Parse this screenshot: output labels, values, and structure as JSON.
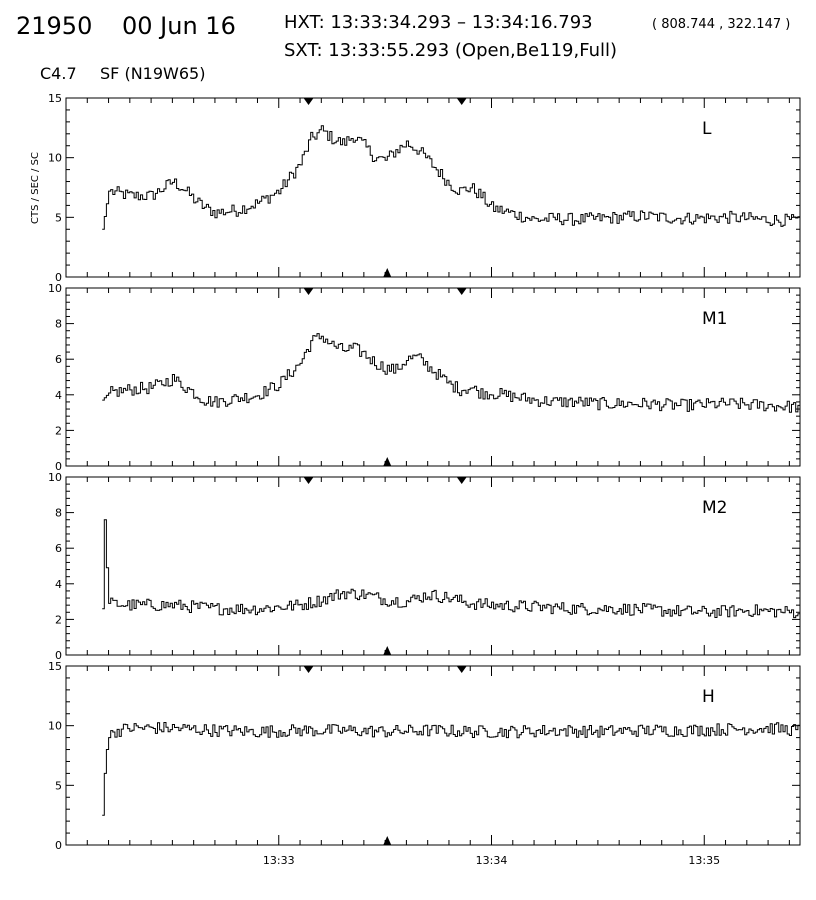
{
  "header": {
    "event_number": "21950",
    "date": "00 Jun 16",
    "hxt_label": "HXT: 13:33:34.293 – 13:34:16.793",
    "hxt_coords": "( 808.744 , 322.147 )",
    "sxt_label": "SXT: 13:33:55.293 (Open,Be119,Full)",
    "goes_class": "C4.7",
    "flare_info": "SF (N19W65)"
  },
  "colors": {
    "line": "#000000",
    "background": "#ffffff"
  },
  "chart_data": {
    "type": "line",
    "ylabel": "CTS / SEC / SC",
    "x_unit": "minutes after 13:32",
    "xlim": [
      0.0,
      3.45
    ],
    "x_tick_labels": [
      {
        "x": 1.0,
        "label": "13:33"
      },
      {
        "x": 2.0,
        "label": "13:34"
      },
      {
        "x": 3.0,
        "label": "13:35"
      }
    ],
    "hxt_markers_x": [
      1.14,
      1.86
    ],
    "sxt_marker_x": 1.51,
    "panels": [
      {
        "name": "L",
        "ylim": [
          0,
          15
        ],
        "yticks": [
          0,
          5,
          10,
          15
        ],
        "x": [
          0.17,
          0.2,
          0.3,
          0.4,
          0.5,
          0.55,
          0.6,
          0.65,
          0.7,
          0.8,
          0.9,
          1.0,
          1.1,
          1.15,
          1.2,
          1.25,
          1.3,
          1.35,
          1.4,
          1.45,
          1.5,
          1.55,
          1.6,
          1.65,
          1.7,
          1.75,
          1.8,
          1.85,
          1.9,
          1.95,
          2.0,
          2.1,
          2.2,
          2.3,
          2.4,
          2.5,
          2.7,
          2.9,
          3.1,
          3.3,
          3.45
        ],
        "values": [
          4.0,
          7.2,
          6.8,
          6.8,
          8.0,
          7.4,
          6.5,
          5.8,
          5.4,
          5.6,
          6.2,
          7.2,
          9.5,
          11.6,
          12.3,
          11.6,
          11.2,
          11.8,
          11.0,
          10.0,
          9.8,
          10.6,
          11.2,
          10.7,
          9.8,
          8.8,
          7.8,
          7.2,
          7.5,
          6.8,
          5.8,
          5.3,
          4.8,
          4.9,
          4.8,
          4.9,
          5.1,
          4.9,
          5.0,
          4.8,
          4.7
        ]
      },
      {
        "name": "M1",
        "ylim": [
          0,
          10
        ],
        "yticks": [
          0,
          2,
          4,
          6,
          8,
          10
        ],
        "x": [
          0.17,
          0.2,
          0.3,
          0.4,
          0.5,
          0.55,
          0.6,
          0.65,
          0.7,
          0.8,
          0.9,
          1.0,
          1.1,
          1.15,
          1.2,
          1.25,
          1.3,
          1.35,
          1.4,
          1.45,
          1.5,
          1.55,
          1.6,
          1.65,
          1.7,
          1.75,
          1.8,
          1.85,
          1.9,
          1.95,
          2.0,
          2.1,
          2.2,
          2.3,
          2.4,
          2.5,
          2.7,
          2.9,
          3.1,
          3.3,
          3.45
        ],
        "values": [
          3.7,
          4.1,
          4.3,
          4.4,
          4.9,
          4.5,
          4.1,
          3.7,
          3.6,
          3.8,
          4.0,
          4.6,
          5.8,
          7.0,
          7.3,
          6.8,
          6.5,
          6.6,
          6.3,
          5.8,
          5.5,
          5.4,
          6.0,
          6.1,
          5.6,
          5.1,
          4.6,
          4.3,
          4.4,
          4.1,
          4.1,
          3.9,
          3.7,
          3.6,
          3.6,
          3.5,
          3.5,
          3.4,
          3.5,
          3.4,
          3.3
        ]
      },
      {
        "name": "M2",
        "ylim": [
          0,
          10
        ],
        "yticks": [
          0,
          2,
          4,
          6,
          8,
          10
        ],
        "x": [
          0.17,
          0.18,
          0.19,
          0.2,
          0.3,
          0.5,
          0.7,
          0.9,
          1.1,
          1.2,
          1.3,
          1.4,
          1.5,
          1.6,
          1.7,
          1.8,
          1.9,
          2.0,
          2.2,
          2.4,
          2.6,
          2.8,
          3.0,
          3.2,
          3.45
        ],
        "values": [
          2.6,
          7.6,
          4.9,
          2.9,
          2.8,
          2.8,
          2.6,
          2.6,
          2.8,
          3.1,
          3.5,
          3.4,
          3.1,
          3.0,
          3.4,
          3.2,
          2.9,
          2.8,
          2.7,
          2.6,
          2.6,
          2.5,
          2.4,
          2.5,
          2.4
        ]
      },
      {
        "name": "H",
        "ylim": [
          0,
          15
        ],
        "yticks": [
          0,
          5,
          10,
          15
        ],
        "x": [
          0.17,
          0.18,
          0.19,
          0.2,
          0.22,
          0.3,
          0.5,
          0.7,
          0.9,
          1.1,
          1.3,
          1.5,
          1.7,
          1.9,
          2.1,
          2.3,
          2.5,
          2.7,
          2.9,
          3.1,
          3.3,
          3.45
        ],
        "values": [
          2.5,
          6.0,
          8.0,
          9.0,
          9.5,
          9.8,
          9.8,
          9.6,
          9.5,
          9.6,
          9.6,
          9.5,
          9.6,
          9.5,
          9.5,
          9.6,
          9.5,
          9.6,
          9.6,
          9.7,
          9.8,
          9.6
        ]
      }
    ]
  }
}
